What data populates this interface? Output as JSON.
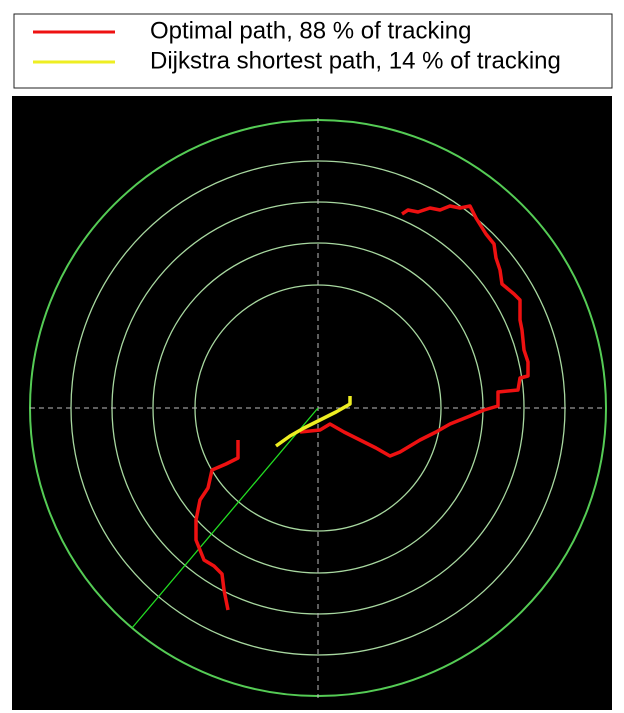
{
  "legend": [
    {
      "label": "Optimal path, 88 % of tracking"
    },
    {
      "label": "Dijkstra shortest path, 14 % of tracking"
    }
  ]
}
